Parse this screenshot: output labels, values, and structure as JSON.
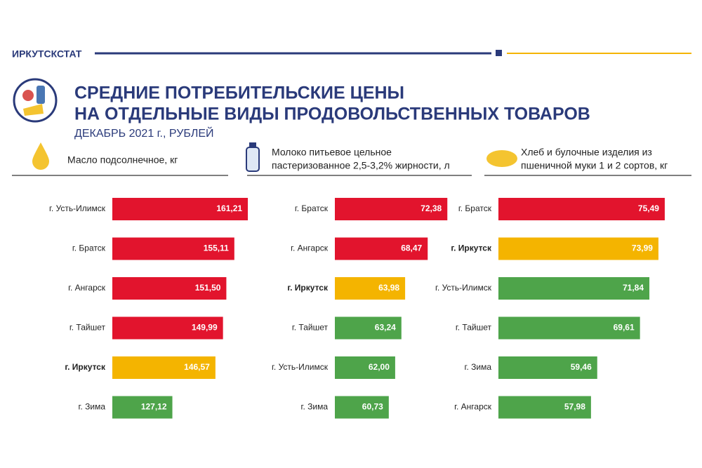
{
  "header": {
    "agency": "ИРКУТСКСТАТ",
    "title_lines": [
      "СРЕДНИЕ ПОТРЕБИТЕЛЬСКИЕ ЦЕНЫ",
      "НА ОТДЕЛЬНЫЕ ВИДЫ ПРОДОВОЛЬСТВЕННЫХ ТОВАРОВ"
    ],
    "subtitle": "ДЕКАБРЬ 2021 г., РУБЛЕЙ"
  },
  "chart_data": [
    {
      "type": "bar",
      "orientation": "horizontal",
      "title": [
        "Масло подсолнечное, кг"
      ],
      "categories": [
        "г. Усть-Илимск",
        "г. Братск",
        "г. Ангарск",
        "г. Тайшет",
        "г. Иркутск",
        "г. Зима"
      ],
      "values": [
        161.21,
        155.11,
        151.5,
        149.99,
        146.57,
        127.12
      ],
      "value_labels": [
        "161,21",
        "155,11",
        "151,50",
        "149,99",
        "146,57",
        "127,12"
      ],
      "colors": [
        "#e2142d",
        "#e2142d",
        "#e2142d",
        "#e2142d",
        "#f4b400",
        "#4ea44a"
      ],
      "highlight_color": "#f4b400",
      "xlim": [
        100,
        165
      ]
    },
    {
      "type": "bar",
      "orientation": "horizontal",
      "title": [
        "Молоко питьевое цельное",
        "пастеризованное 2,5-3,2% жирности, л"
      ],
      "categories": [
        "г. Братск",
        "г. Ангарск",
        "г. Иркутск",
        "г. Тайшет",
        "г. Усть-Илимск",
        "г. Зима"
      ],
      "values": [
        72.38,
        68.47,
        63.98,
        63.24,
        62.0,
        60.73
      ],
      "value_labels": [
        "72,38",
        "68,47",
        "63,98",
        "63,24",
        "62,00",
        "60,73"
      ],
      "colors": [
        "#e2142d",
        "#e2142d",
        "#f4b400",
        "#4ea44a",
        "#4ea44a",
        "#4ea44a"
      ],
      "highlight_color": "#f4b400",
      "xlim": [
        50,
        75
      ]
    },
    {
      "type": "bar",
      "orientation": "horizontal",
      "title": [
        "Хлеб и булочные изделия из",
        "пшеничной муки 1 и 2 сортов, кг"
      ],
      "categories": [
        "г. Братск",
        "г. Иркутск",
        "г. Усть-Илимск",
        "г. Тайшет",
        "г. Зима",
        "г. Ангарск"
      ],
      "values": [
        75.49,
        73.99,
        71.84,
        69.61,
        59.46,
        57.98
      ],
      "value_labels": [
        "75,49",
        "73,99",
        "71,84",
        "69,61",
        "59,46",
        "57,98"
      ],
      "colors": [
        "#e2142d",
        "#f4b400",
        "#4ea44a",
        "#4ea44a",
        "#4ea44a",
        "#4ea44a"
      ],
      "highlight_color": "#f4b400",
      "xlim": [
        36,
        78
      ]
    }
  ]
}
